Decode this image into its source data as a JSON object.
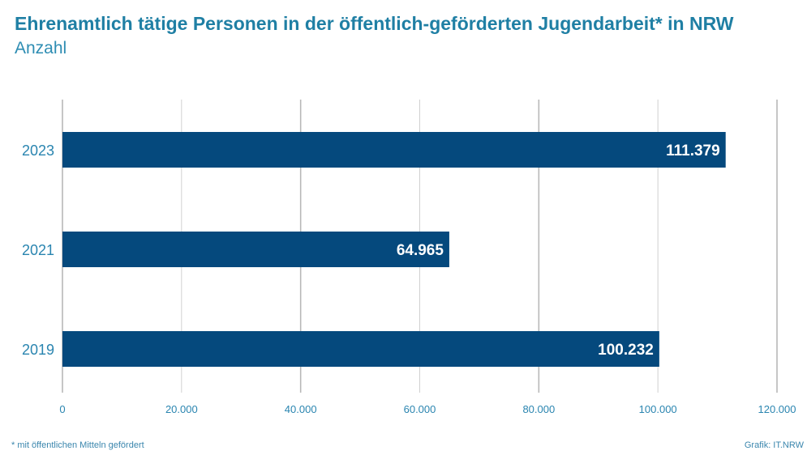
{
  "header": {
    "title": "Ehrenamtlich tätige Personen in der öffentlich-geförderten Jugendarbeit* in NRW",
    "subtitle": "Anzahl"
  },
  "footer": {
    "footnote": "*  mit öffentlichen Mitteln gefördert",
    "source": "Grafik: IT.NRW"
  },
  "colors": {
    "bar": "#05497d",
    "axis_text": "#2a85b0",
    "grid": "#d0d0d0",
    "title": "#1f7fa4"
  },
  "chart_data": {
    "type": "bar",
    "orientation": "horizontal",
    "title": "Ehrenamtlich tätige Personen in der öffentlich-geförderten Jugendarbeit* in NRW",
    "subtitle": "Anzahl",
    "categories": [
      "2023",
      "2021",
      "2019"
    ],
    "values": [
      111379,
      64965,
      100232
    ],
    "value_labels": [
      "111.379",
      "64.965",
      "100.232"
    ],
    "xlim": [
      0,
      120000
    ],
    "xticks": [
      0,
      20000,
      40000,
      60000,
      80000,
      100000,
      120000
    ],
    "xtick_labels": [
      "0",
      "20.000",
      "40.000",
      "60.000",
      "80.000",
      "100.000",
      "120.000"
    ],
    "grid": true,
    "legend": "none"
  }
}
